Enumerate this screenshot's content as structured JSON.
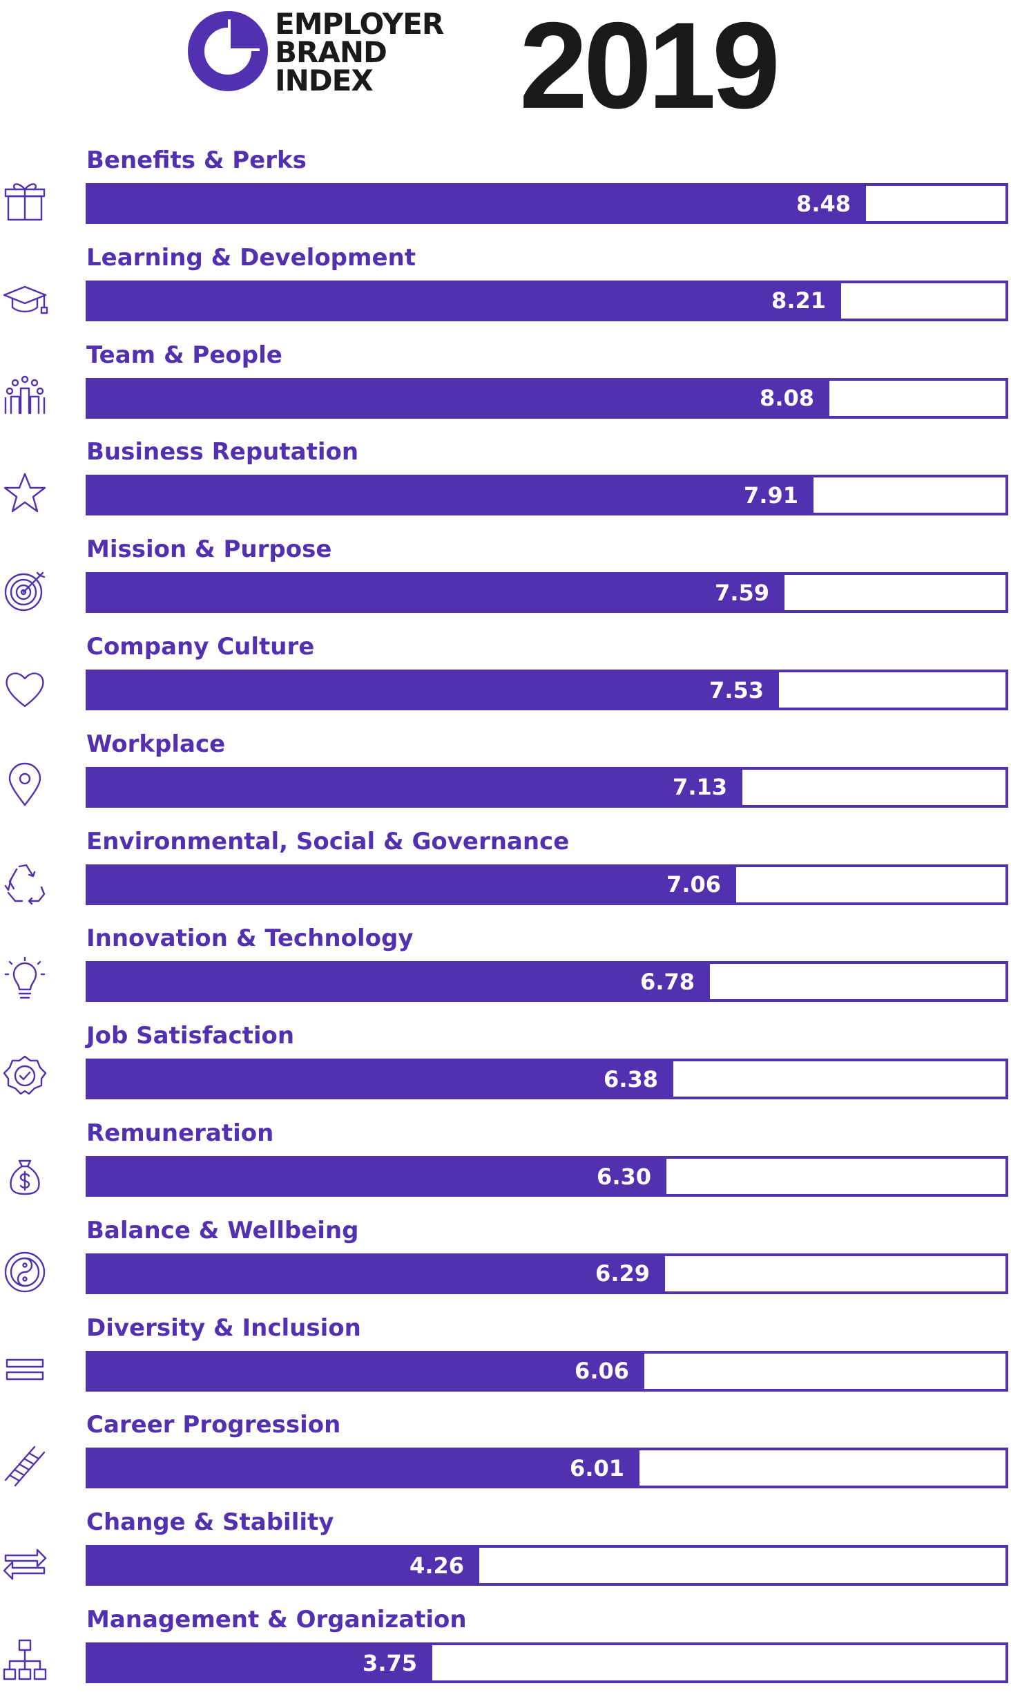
{
  "header": {
    "logo_lines": [
      "EMPLOYER",
      "BRAND",
      "INDEX"
    ],
    "year": "2019"
  },
  "colors": {
    "accent": "#5330af",
    "text_dark": "#1a1a1a",
    "value_text": "#ffffff"
  },
  "chart_data": {
    "type": "bar",
    "orientation": "horizontal",
    "title": "",
    "xlabel": "",
    "ylabel": "",
    "xlim": [
      0,
      10
    ],
    "grid": false,
    "legend": "none",
    "categories": [
      "Benefits & Perks",
      "Learning & Development",
      "Team & People",
      "Business Reputation",
      "Mission & Purpose",
      "Company Culture",
      "Workplace",
      "Environmental, Social & Governance",
      "Innovation & Technology",
      "Job Satisfaction",
      "Remuneration",
      "Balance & Wellbeing",
      "Diversity & Inclusion",
      "Career Progression",
      "Change & Stability",
      "Management & Organization"
    ],
    "values": [
      8.48,
      8.21,
      8.08,
      7.91,
      7.59,
      7.53,
      7.13,
      7.06,
      6.78,
      6.38,
      6.3,
      6.29,
      6.06,
      6.01,
      4.26,
      3.75
    ],
    "value_labels": [
      "8.48",
      "8.21",
      "8.08",
      "7.91",
      "7.59",
      "7.53",
      "7.13",
      "7.06",
      "6.78",
      "6.38",
      "6.30",
      "6.29",
      "6.06",
      "6.01",
      "4.26",
      "3.75"
    ],
    "icons": [
      "gift-icon",
      "graduation-cap-icon",
      "team-icon",
      "star-icon",
      "target-icon",
      "heart-icon",
      "location-pin-icon",
      "recycle-icon",
      "lightbulb-icon",
      "badge-check-icon",
      "money-bag-icon",
      "yin-yang-icon",
      "equals-icon",
      "ladder-icon",
      "exchange-arrows-icon",
      "org-chart-icon"
    ]
  }
}
